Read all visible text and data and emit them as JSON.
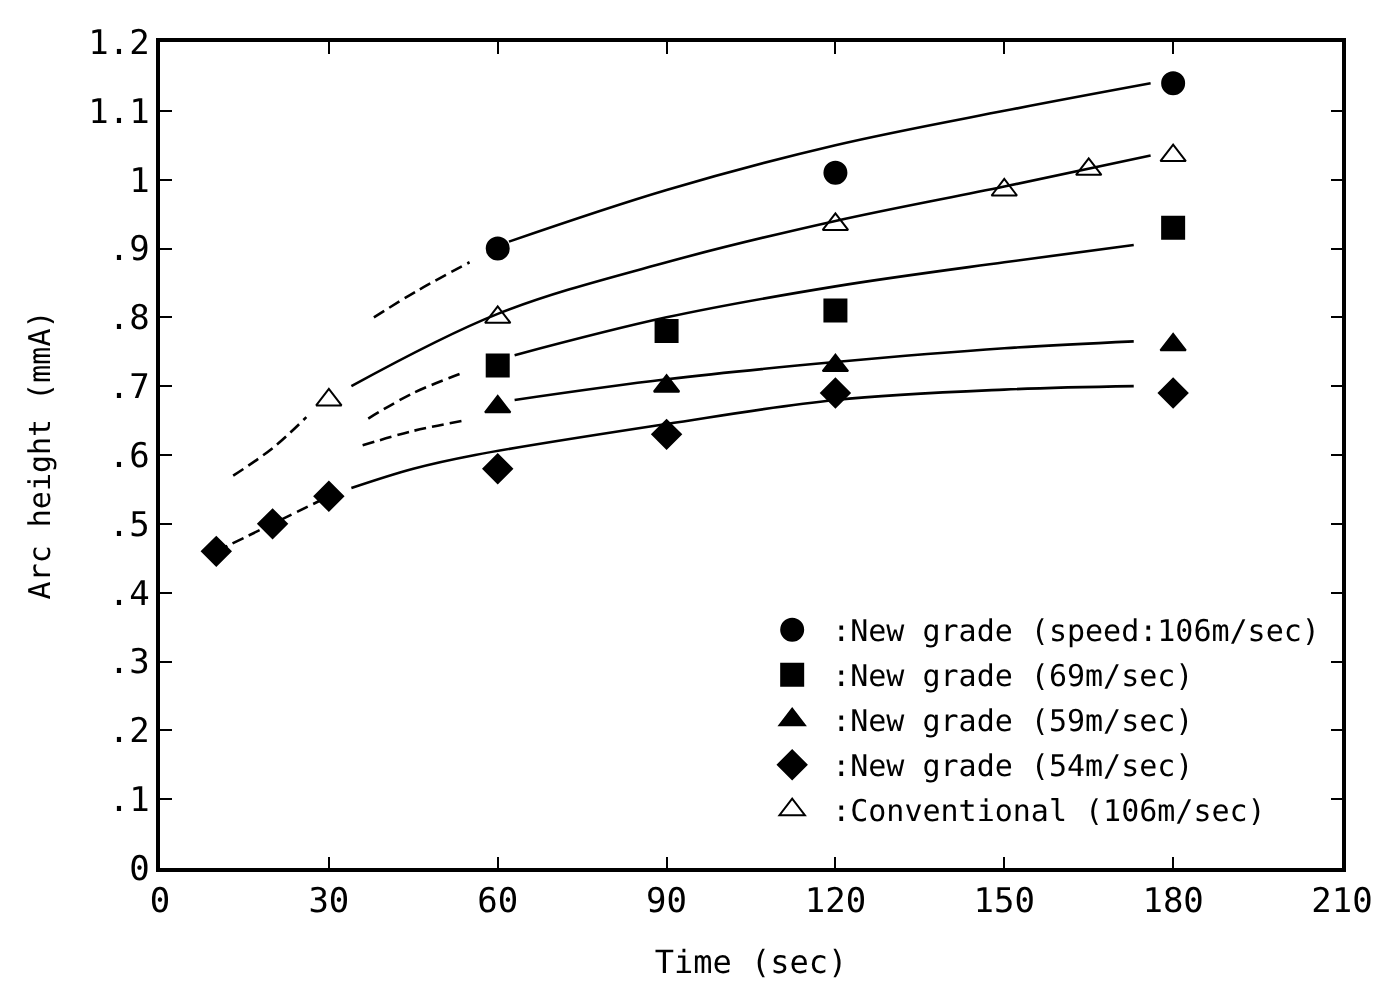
{
  "chart_data": {
    "type": "scatter",
    "xlabel": "Time (sec)",
    "ylabel": "Arc height (mmA)",
    "xlim": [
      0,
      210
    ],
    "xticks": [
      0,
      30,
      60,
      90,
      120,
      150,
      180,
      210
    ],
    "ylim": [
      0,
      1.2
    ],
    "yticks": [
      0,
      {
        "value": 0.1,
        "label": ".1"
      },
      {
        "value": 0.2,
        "label": ".2"
      },
      {
        "value": 0.3,
        "label": ".3"
      },
      {
        "value": 0.4,
        "label": ".4"
      },
      {
        "value": 0.5,
        "label": ".5"
      },
      {
        "value": 0.6,
        "label": ".6"
      },
      {
        "value": 0.7,
        "label": ".7"
      },
      {
        "value": 0.8,
        "label": ".8"
      },
      {
        "value": 0.9,
        "label": ".9"
      },
      1,
      1.1,
      1.2
    ],
    "grid": false,
    "legend": "bottom right",
    "series": [
      {
        "name": ":New grade (speed:106m/sec)",
        "marker": "circle",
        "color": "#000000",
        "x": [
          60,
          120,
          180
        ],
        "values": [
          0.9,
          1.01,
          1.14
        ]
      },
      {
        "name": ":New grade (69m/sec)",
        "marker": "square",
        "color": "#000000",
        "x": [
          60,
          90,
          120,
          180
        ],
        "values": [
          0.73,
          0.78,
          0.81,
          0.93
        ]
      },
      {
        "name": ":New grade (59m/sec)",
        "marker": "triangle",
        "color": "#000000",
        "x": [
          60,
          90,
          120,
          180
        ],
        "values": [
          0.67,
          0.7,
          0.73,
          0.76
        ]
      },
      {
        "name": ":New grade (54m/sec)",
        "marker": "diamond",
        "color": "#000000",
        "x": [
          10,
          20,
          30,
          60,
          90,
          120,
          180
        ],
        "values": [
          0.46,
          0.5,
          0.54,
          0.58,
          0.63,
          0.69,
          0.69
        ]
      },
      {
        "name": ":Conventional (106m/sec)",
        "marker": "triangle",
        "color": "#ffffff",
        "x": [
          30,
          60,
          120,
          150,
          165,
          180
        ],
        "values": [
          0.68,
          0.8,
          0.935,
          0.985,
          1.015,
          1.035
        ]
      },
      {
        "type": "line",
        "line_style": "dashed",
        "marker": "none",
        "color": "#000000",
        "x": [
          38,
          46,
          55
        ],
        "values": [
          0.8,
          0.84,
          0.88
        ]
      },
      {
        "type": "line",
        "line_style": "solid",
        "marker": "none",
        "color": "#000000",
        "x": [
          62,
          90,
          120,
          150,
          176
        ],
        "values": [
          0.91,
          0.985,
          1.05,
          1.1,
          1.14
        ]
      },
      {
        "type": "line",
        "line_style": "dashed",
        "marker": "none",
        "color": "#000000",
        "x": [
          13,
          20,
          26
        ],
        "values": [
          0.57,
          0.61,
          0.655
        ]
      },
      {
        "type": "line",
        "line_style": "solid",
        "marker": "none",
        "color": "#000000",
        "x": [
          34,
          60,
          90,
          120,
          150,
          176
        ],
        "values": [
          0.7,
          0.805,
          0.88,
          0.94,
          0.99,
          1.035
        ]
      },
      {
        "type": "line",
        "line_style": "dashed",
        "marker": "none",
        "color": "#000000",
        "x": [
          37,
          45,
          54
        ],
        "values": [
          0.653,
          0.69,
          0.72
        ]
      },
      {
        "type": "line",
        "line_style": "solid",
        "marker": "none",
        "color": "#000000",
        "x": [
          63,
          90,
          120,
          150,
          173
        ],
        "values": [
          0.745,
          0.8,
          0.845,
          0.88,
          0.905
        ]
      },
      {
        "type": "line",
        "line_style": "dashed",
        "marker": "none",
        "color": "#000000",
        "x": [
          36,
          45,
          54
        ],
        "values": [
          0.614,
          0.635,
          0.65
        ]
      },
      {
        "type": "line",
        "line_style": "solid",
        "marker": "none",
        "color": "#000000",
        "x": [
          63,
          90,
          120,
          150,
          173
        ],
        "values": [
          0.68,
          0.71,
          0.735,
          0.755,
          0.765
        ]
      },
      {
        "type": "line",
        "line_style": "dashed",
        "marker": "none",
        "color": "#000000",
        "x": [
          10,
          20,
          30
        ],
        "values": [
          0.46,
          0.5,
          0.54
        ]
      },
      {
        "type": "line",
        "line_style": "solid",
        "marker": "none",
        "color": "#000000",
        "x": [
          34,
          45,
          56,
          90,
          120,
          150,
          173
        ],
        "values": [
          0.552,
          0.58,
          0.6,
          0.645,
          0.68,
          0.695,
          0.7
        ]
      }
    ]
  }
}
